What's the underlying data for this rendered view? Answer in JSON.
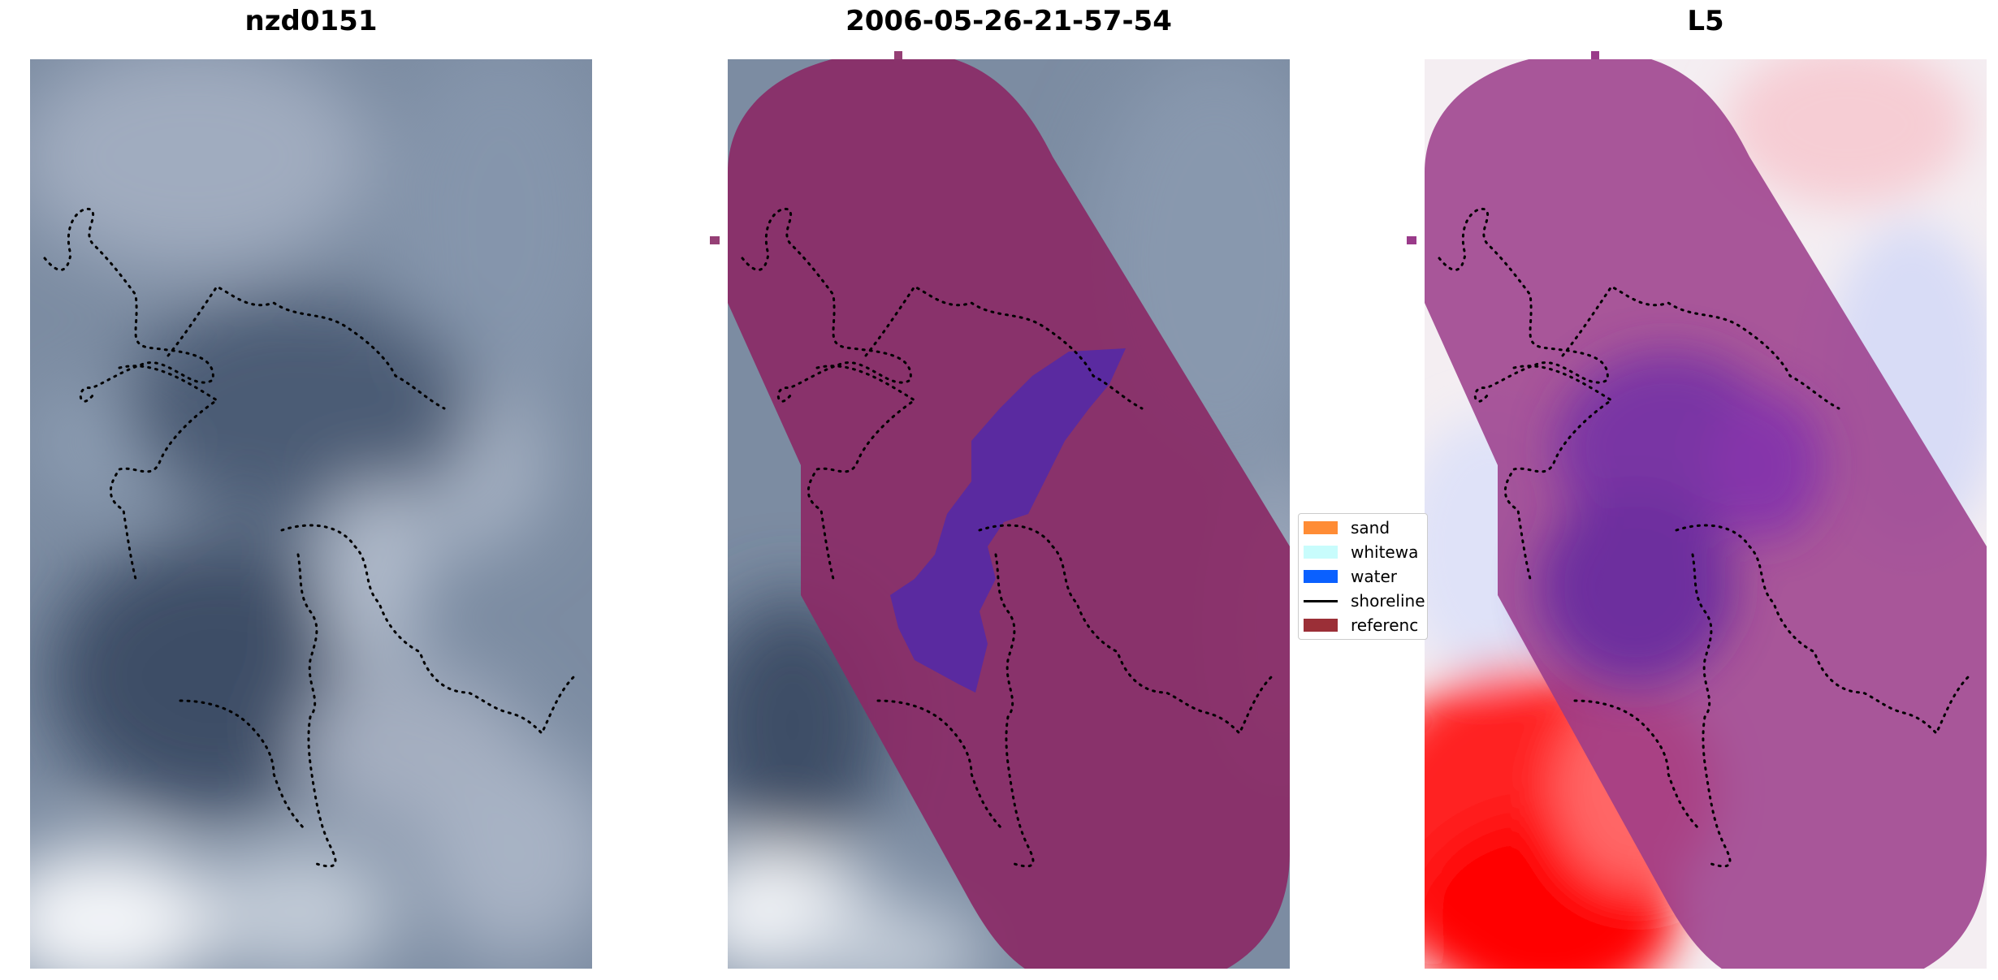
{
  "panels": [
    {
      "title": "nzd0151"
    },
    {
      "title": "2006-05-26-21-57-54"
    },
    {
      "title": "L5"
    }
  ],
  "legend": {
    "items": [
      {
        "label": "sand",
        "color": "#ff8c35",
        "kind": "patch"
      },
      {
        "label": "whitewa",
        "color": "#c8fcfc",
        "kind": "patch"
      },
      {
        "label": "water",
        "color": "#0a60ff",
        "kind": "patch"
      },
      {
        "label": "shoreline",
        "color": "#000000",
        "kind": "line"
      },
      {
        "label": "referenc",
        "color": "#9b2f37",
        "kind": "patch"
      }
    ]
  },
  "colors": {
    "reference_overlay": "#8a2a66",
    "water_overlay": "#5a2aa0",
    "satellite_base": "#7c8ca2",
    "index_positive": "#ff0000",
    "index_negative": "#2020ff"
  }
}
